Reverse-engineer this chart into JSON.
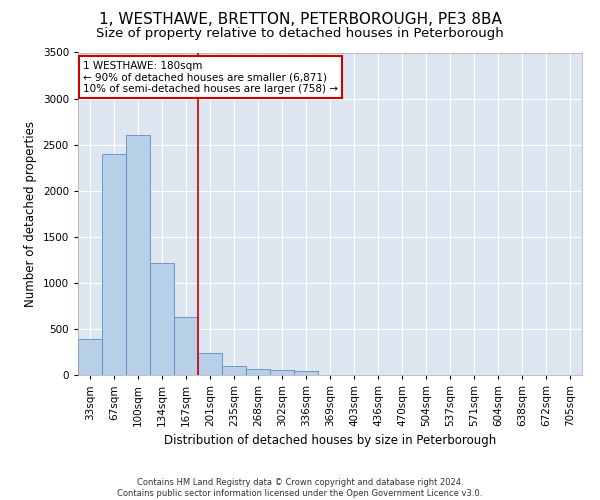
{
  "title": "1, WESTHAWE, BRETTON, PETERBOROUGH, PE3 8BA",
  "subtitle": "Size of property relative to detached houses in Peterborough",
  "xlabel": "Distribution of detached houses by size in Peterborough",
  "ylabel": "Number of detached properties",
  "footnote": "Contains HM Land Registry data © Crown copyright and database right 2024.\nContains public sector information licensed under the Open Government Licence v3.0.",
  "categories": [
    "33sqm",
    "67sqm",
    "100sqm",
    "134sqm",
    "167sqm",
    "201sqm",
    "235sqm",
    "268sqm",
    "302sqm",
    "336sqm",
    "369sqm",
    "403sqm",
    "436sqm",
    "470sqm",
    "504sqm",
    "537sqm",
    "571sqm",
    "604sqm",
    "638sqm",
    "672sqm",
    "705sqm"
  ],
  "values": [
    390,
    2400,
    2600,
    1220,
    630,
    240,
    100,
    60,
    55,
    40,
    0,
    0,
    0,
    0,
    0,
    0,
    0,
    0,
    0,
    0,
    0
  ],
  "bar_color": "#b8cfe8",
  "bar_edge_color": "#5b8ec4",
  "vline_x": 4.5,
  "vline_color": "#cc0000",
  "annotation_text": "1 WESTHAWE: 180sqm\n← 90% of detached houses are smaller (6,871)\n10% of semi-detached houses are larger (758) →",
  "annotation_box_color": "white",
  "annotation_box_edge": "#cc0000",
  "ylim": [
    0,
    3500
  ],
  "yticks": [
    0,
    500,
    1000,
    1500,
    2000,
    2500,
    3000,
    3500
  ],
  "background_color": "#dde6f0",
  "grid_color": "white",
  "title_fontsize": 11,
  "subtitle_fontsize": 9.5,
  "axis_label_fontsize": 8.5,
  "tick_fontsize": 7.5,
  "footnote_fontsize": 6
}
